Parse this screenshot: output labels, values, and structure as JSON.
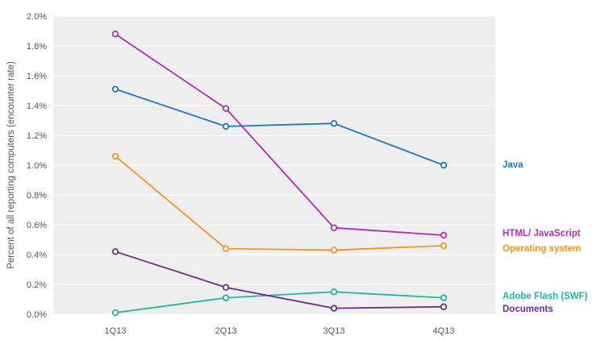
{
  "chart_data": {
    "type": "line",
    "title": "",
    "xlabel": "",
    "ylabel": "Percent of all reporting computers (encounter rate)",
    "categories": [
      "1Q13",
      "2Q13",
      "3Q13",
      "4Q13"
    ],
    "ylim": [
      0,
      2.0
    ],
    "yticks": [
      "0.0%",
      "0.2%",
      "0.4%",
      "0.6%",
      "0.8%",
      "1.0%",
      "1.2%",
      "1.4%",
      "1.6%",
      "1.8%",
      "2.0%"
    ],
    "grid": true,
    "series": [
      {
        "name": "Java",
        "color": "#1f77c4",
        "values": [
          1.51,
          1.26,
          1.28,
          1.0
        ]
      },
      {
        "name": "HTML/ JavaScript",
        "color": "#b32db3",
        "values": [
          1.88,
          1.38,
          0.58,
          0.53
        ]
      },
      {
        "name": "Operating system",
        "color": "#f7941d",
        "values": [
          1.06,
          0.44,
          0.43,
          0.46
        ]
      },
      {
        "name": "Adobe Flash (SWF)",
        "color": "#1fb5a0",
        "values": [
          0.01,
          0.11,
          0.15,
          0.11
        ]
      },
      {
        "name": "Documents",
        "color": "#6b2c8f",
        "values": [
          0.42,
          0.18,
          0.04,
          0.05
        ]
      }
    ]
  }
}
